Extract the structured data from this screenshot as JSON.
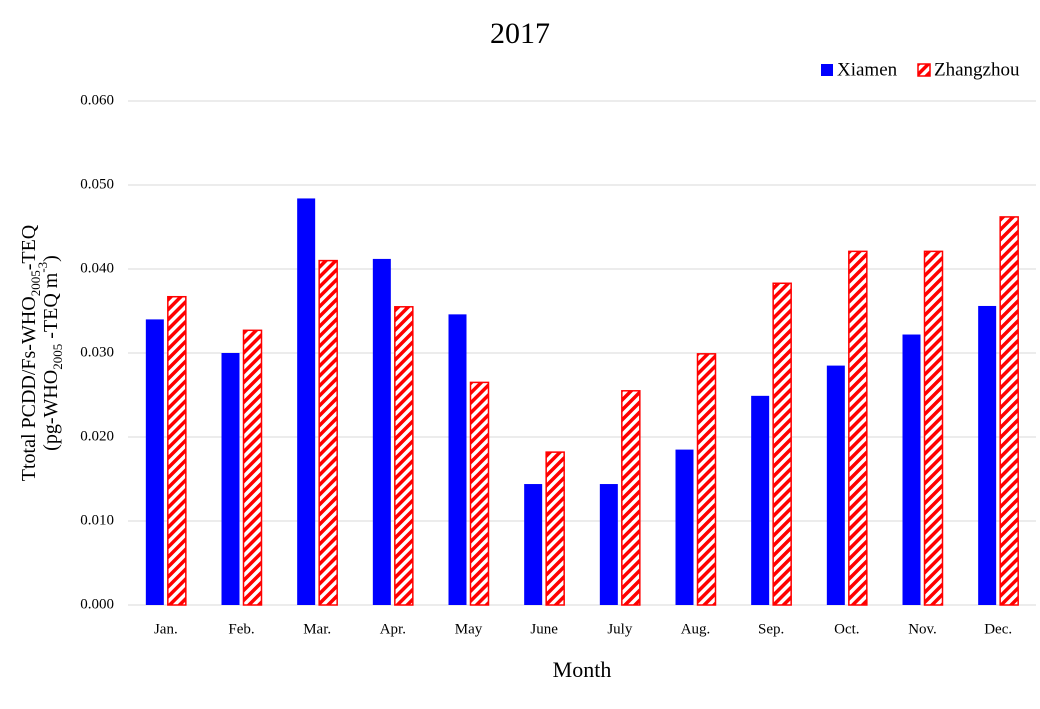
{
  "chart_data": {
    "type": "bar",
    "title": "2017",
    "x_label": "Month",
    "y_label": [
      [
        {
          "text": "Ttotal PCDD/Fs-WHO"
        },
        {
          "text": "2005",
          "shift": "sub"
        },
        {
          "text": "-TEQ"
        }
      ],
      [
        {
          "text": "(pg-WHO"
        },
        {
          "text": "2005",
          "shift": "sub"
        },
        {
          "text": " -TEQ m"
        },
        {
          "text": "-3",
          "shift": "super"
        },
        {
          "text": ")"
        }
      ]
    ],
    "categories": [
      "Jan.",
      "Feb.",
      "Mar.",
      "Apr.",
      "May",
      "June",
      "July",
      "Aug.",
      "Sep.",
      "Oct.",
      "Nov.",
      "Dec."
    ],
    "series": [
      {
        "name": "Xiamen",
        "color": "#0000ff",
        "hatch": false,
        "values": [
          0.034,
          0.03,
          0.0484,
          0.0412,
          0.0346,
          0.0144,
          0.0144,
          0.0185,
          0.0249,
          0.0285,
          0.0322,
          0.0356
        ]
      },
      {
        "name": "Zhangzhou",
        "color": "#ff0000",
        "hatch": true,
        "values": [
          0.0367,
          0.0327,
          0.041,
          0.0355,
          0.0265,
          0.0182,
          0.0255,
          0.0299,
          0.0383,
          0.0421,
          0.0421,
          0.0462
        ]
      }
    ],
    "ylim": [
      0,
      0.06
    ],
    "yticks": [
      {
        "value": 0,
        "label": "0.000"
      },
      {
        "value": 0.01,
        "label": "0.010"
      },
      {
        "value": 0.02,
        "label": "0.020"
      },
      {
        "value": 0.03,
        "label": "0.030"
      },
      {
        "value": 0.04,
        "label": "0.040"
      },
      {
        "value": 0.05,
        "label": "0.050"
      },
      {
        "value": 0.06,
        "label": "0.060"
      }
    ],
    "grid": true,
    "legend": "top-right"
  }
}
